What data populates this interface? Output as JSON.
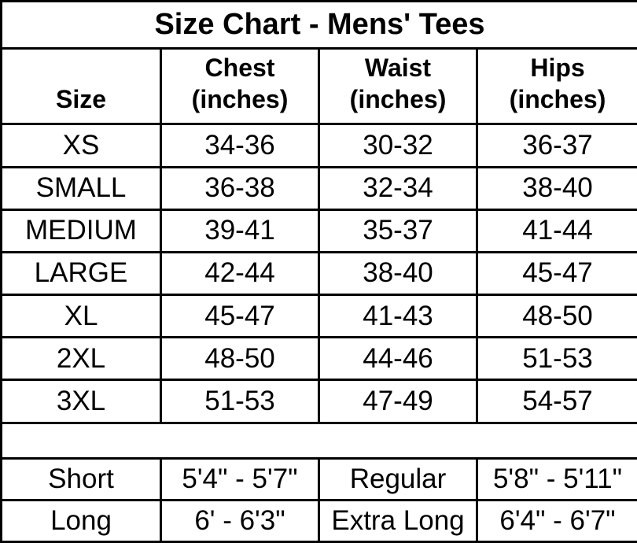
{
  "chart_data": {
    "type": "table",
    "title": "Size Chart - Mens' Tees",
    "columns": [
      {
        "label": "Size",
        "unit": ""
      },
      {
        "label": "Chest",
        "unit": "(inches)"
      },
      {
        "label": "Waist",
        "unit": "(inches)"
      },
      {
        "label": "Hips",
        "unit": "(inches)"
      }
    ],
    "rows": [
      [
        "XS",
        "34-36",
        "30-32",
        "36-37"
      ],
      [
        "SMALL",
        "36-38",
        "32-34",
        "38-40"
      ],
      [
        "MEDIUM",
        "39-41",
        "35-37",
        "41-44"
      ],
      [
        "LARGE",
        "42-44",
        "38-40",
        "45-47"
      ],
      [
        "XL",
        "45-47",
        "41-43",
        "48-50"
      ],
      [
        "2XL",
        "48-50",
        "44-46",
        "51-53"
      ],
      [
        "3XL",
        "51-53",
        "47-49",
        "54-57"
      ]
    ],
    "height_rows": [
      [
        "Short",
        "5'4\" - 5'7\"",
        "Regular",
        "5'8\" - 5'11\""
      ],
      [
        "Long",
        "6' - 6'3\"",
        "Extra Long",
        "6'4\" - 6'7\""
      ]
    ]
  }
}
